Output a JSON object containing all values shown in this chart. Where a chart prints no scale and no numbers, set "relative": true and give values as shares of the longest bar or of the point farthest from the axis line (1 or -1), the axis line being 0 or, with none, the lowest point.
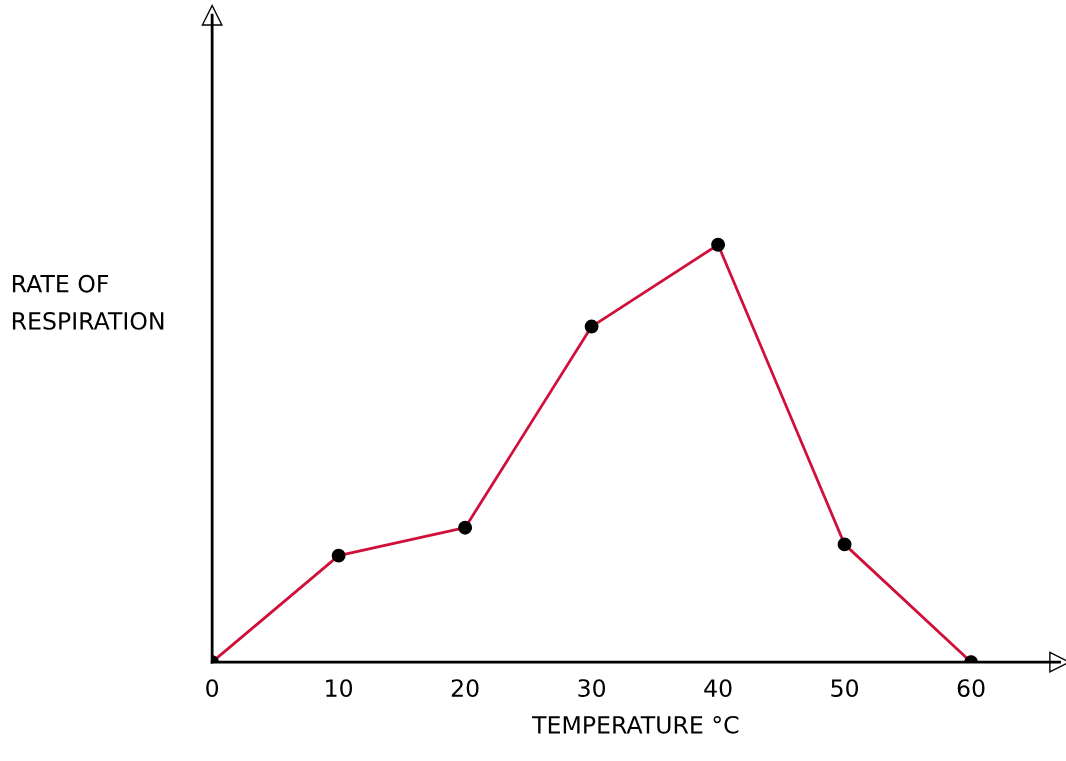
{
  "chart_data": {
    "type": "line",
    "relative": true,
    "xlabel": "TEMPERATURE °C",
    "ylabel": "RATE OF\nRESPIRATION",
    "x": [
      0,
      10,
      20,
      30,
      40,
      50,
      60
    ],
    "series": [
      {
        "color": "#d0103a",
        "values": [
          0,
          0.255,
          0.322,
          0.804,
          1,
          0.282,
          0
        ]
      }
    ],
    "xlim": [
      0,
      67
    ],
    "xticks": [
      0,
      10,
      20,
      30,
      40,
      50,
      60
    ],
    "marker": "circle",
    "line_style": "solid",
    "grid": false,
    "legend": false
  }
}
